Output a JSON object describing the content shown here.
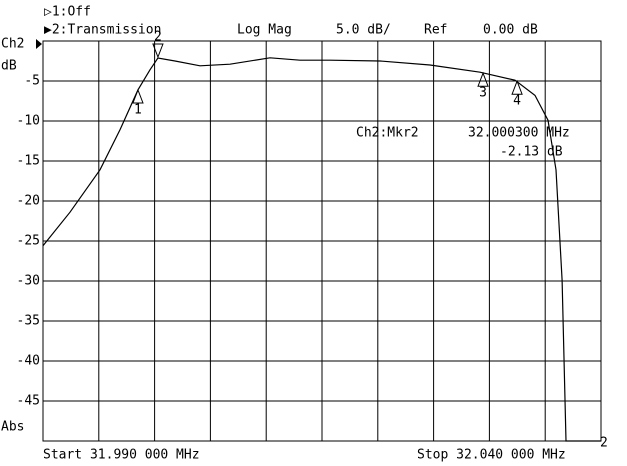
{
  "header": {
    "ch1": "▷1:Off",
    "ch2": "▶2:Transmission",
    "format": "Log Mag",
    "scale": "5.0 dB/",
    "ref_label": "Ref",
    "ref_value": "0.00 dB"
  },
  "chart_data": {
    "type": "line",
    "color": "#000000",
    "y_label_top": "Ch2",
    "y_unit": "dB",
    "y_label_bottom": "Abs",
    "start_label": "Start 31.990 000 MHz",
    "stop_label": "Stop 32.040 000 MHz",
    "x": [
      31.99,
      31.99242,
      31.99511,
      31.9969,
      31.99851,
      31.99959,
      32.0003,
      32.00183,
      32.00407,
      32.00676,
      32.01034,
      32.01303,
      32.01572,
      32.0202,
      32.02468,
      32.02916,
      32.03229,
      32.03409,
      32.03525,
      32.03597,
      32.03651,
      32.03686,
      32.04
    ],
    "values": [
      -25.6,
      -21.4,
      -16.1,
      -11.1,
      -6.1,
      -3.6,
      -2.13,
      -2.5,
      -3.1,
      -2.9,
      -2.1,
      -2.4,
      -2.4,
      -2.5,
      -3.0,
      -3.9,
      -4.9,
      -6.8,
      -9.9,
      -16.1,
      -29.9,
      -50,
      -50
    ],
    "xlim": [
      31.99,
      32.04
    ],
    "ylim": [
      -50,
      0
    ],
    "yticks": [
      -5,
      -10,
      -15,
      -20,
      -25,
      -30,
      -35,
      -40,
      -45
    ],
    "markers": [
      {
        "label": "1",
        "x": 31.99851,
        "y": -6.0
      },
      {
        "label": "2",
        "x": 32.0003,
        "y": -2.13
      },
      {
        "label": "3",
        "x": 32.02943,
        "y": -3.9
      },
      {
        "label": "4",
        "x": 32.03248,
        "y": -4.9
      }
    ],
    "marker_readout": {
      "title": "Ch2:Mkr2",
      "frequency": "32.000300 MHz",
      "value": "-2.13 dB"
    },
    "end_marker_label": "2"
  }
}
